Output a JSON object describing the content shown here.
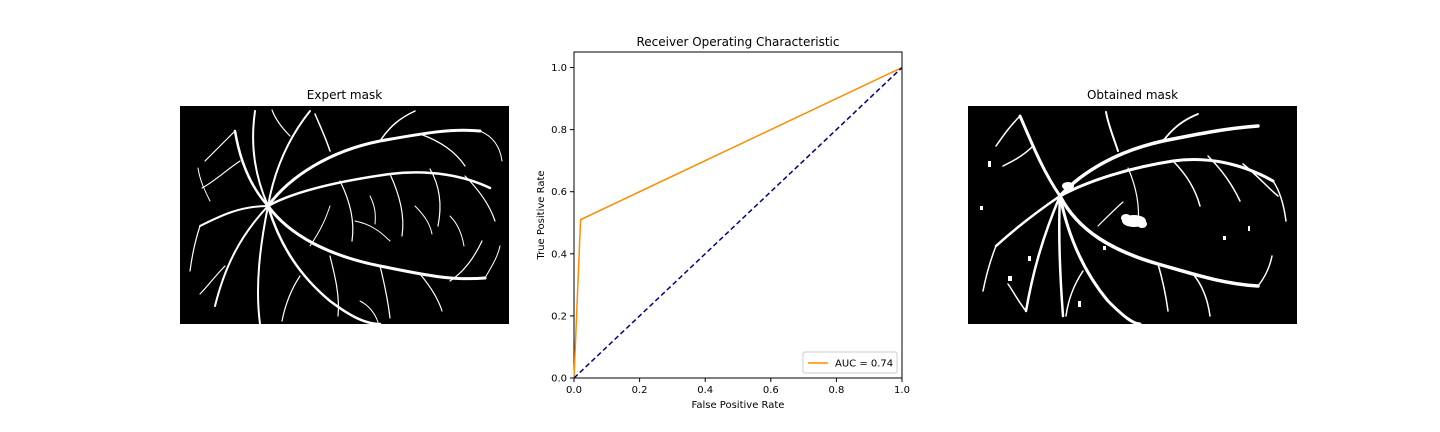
{
  "left_panel": {
    "title": "Expert mask"
  },
  "right_panel": {
    "title": "Obtained mask"
  },
  "chart_data": {
    "type": "line",
    "title": "Receiver Operating Characteristic",
    "xlabel": "False Positive Rate",
    "ylabel": "True Positive Rate",
    "xlim": [
      0.0,
      1.0
    ],
    "ylim": [
      0.0,
      1.05
    ],
    "xticks": [
      "0.0",
      "0.2",
      "0.4",
      "0.6",
      "0.8",
      "1.0"
    ],
    "yticks": [
      "0.0",
      "0.2",
      "0.4",
      "0.6",
      "0.8",
      "1.0"
    ],
    "grid": false,
    "legend_position": "lower-right",
    "series": [
      {
        "name": "AUC = 0.74",
        "style": "solid",
        "color": "#ff8c00",
        "x": [
          0.0,
          0.02,
          1.0
        ],
        "y": [
          0.0,
          0.51,
          1.0
        ]
      },
      {
        "style": "dashed",
        "color": "#000080",
        "x": [
          0.0,
          1.0
        ],
        "y": [
          0.0,
          1.0
        ]
      }
    ]
  }
}
